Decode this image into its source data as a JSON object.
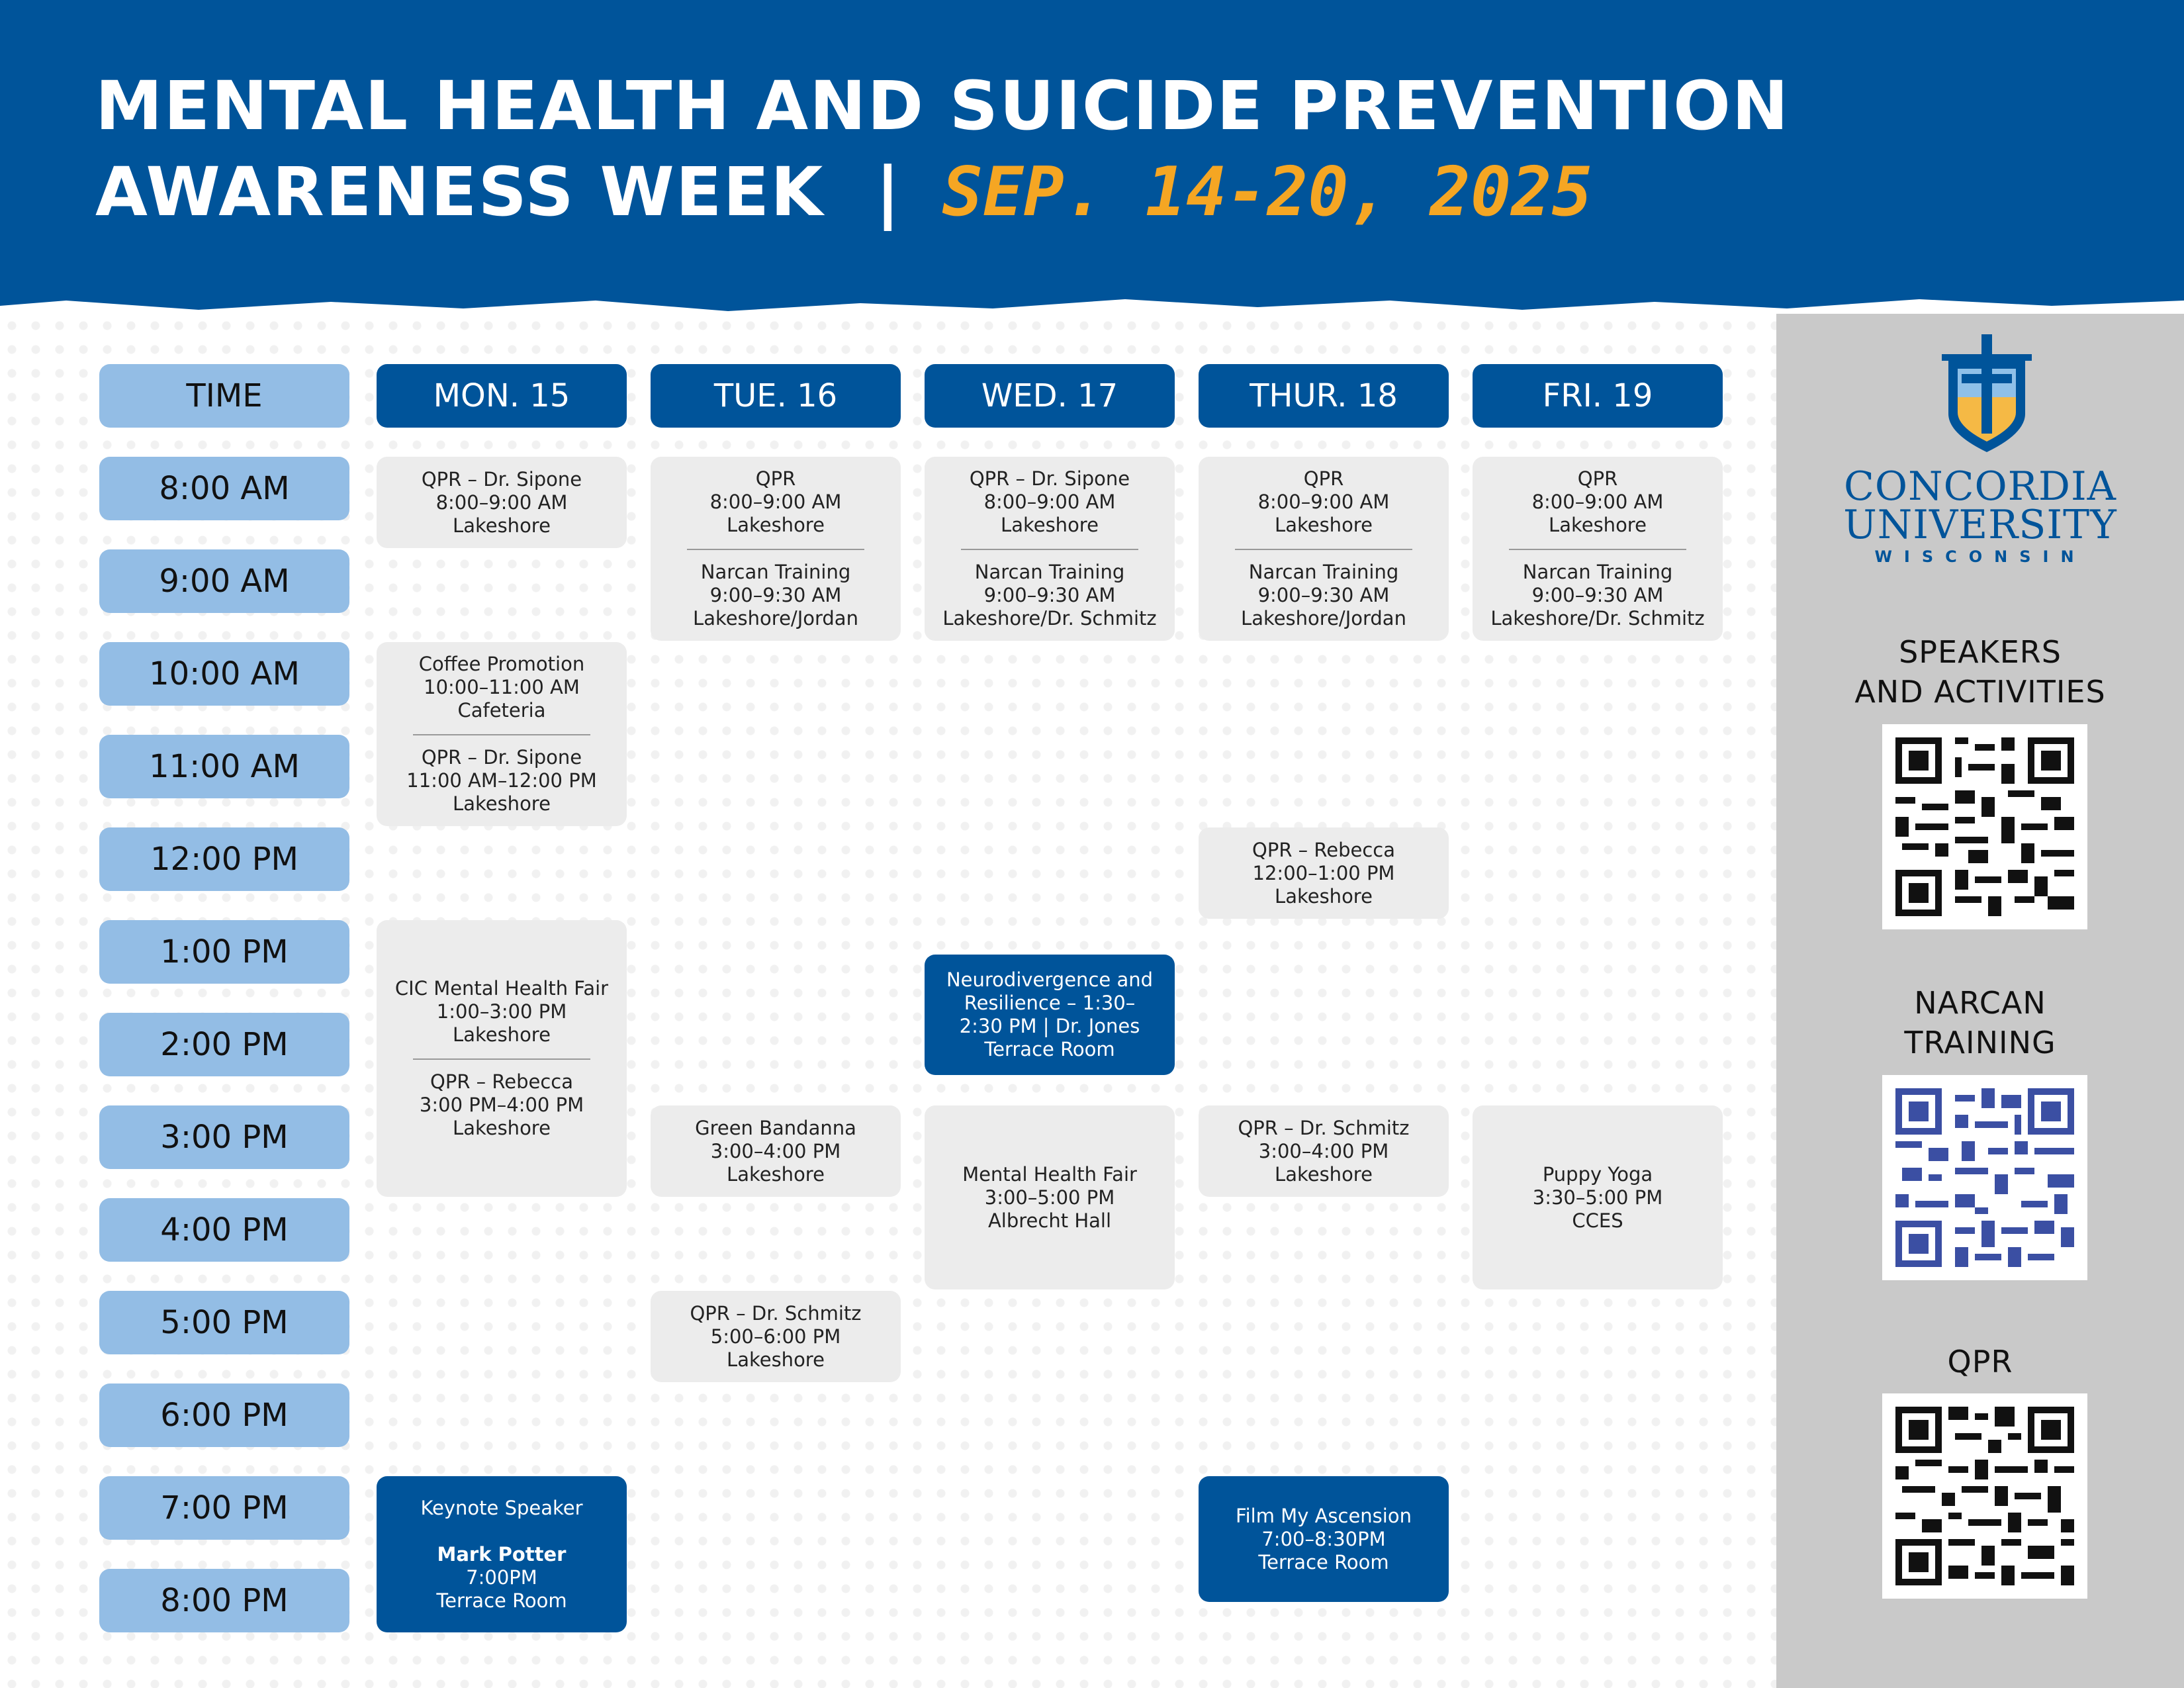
{
  "header": {
    "title_line1": "MENTAL HEALTH AND SUICIDE PREVENTION",
    "title_line2": "AWARENESS WEEK",
    "separator": "|",
    "dates": "SEP. 14-20, 2025"
  },
  "grid": {
    "time_header": "TIME",
    "days": [
      "MON. 15",
      "TUE. 16",
      "WED. 17",
      "THUR. 18",
      "FRI. 19"
    ],
    "times": [
      "8:00 AM",
      "9:00 AM",
      "10:00 AM",
      "11:00 AM",
      "12:00 PM",
      "1:00 PM",
      "2:00 PM",
      "3:00 PM",
      "4:00 PM",
      "5:00 PM",
      "6:00 PM",
      "7:00 PM",
      "8:00 PM"
    ]
  },
  "events": {
    "mon_qpr": [
      "QPR – Dr. Sipone",
      "8:00–9:00 AM",
      "Lakeshore"
    ],
    "mon_coffee": [
      "Coffee Promotion",
      "10:00–11:00 AM",
      "Cafeteria"
    ],
    "mon_qpr2": [
      "QPR – Dr. Sipone",
      "11:00 AM–12:00 PM",
      "Lakeshore"
    ],
    "mon_fair": [
      "CIC Mental Health Fair",
      "1:00–3:00 PM",
      "Lakeshore"
    ],
    "mon_qpr3": [
      "QPR – Rebecca",
      "3:00 PM–4:00 PM",
      "Lakeshore"
    ],
    "mon_keynote": [
      "Keynote Speaker",
      "Mark Potter",
      "7:00PM",
      "Terrace Room"
    ],
    "tue_qpr": [
      "QPR",
      "8:00–9:00 AM",
      "Lakeshore"
    ],
    "tue_narcan": [
      "Narcan Training",
      "9:00–9:30 AM",
      "Lakeshore/Jordan"
    ],
    "tue_bandanna": [
      "Green Bandanna",
      "3:00–4:00 PM",
      "Lakeshore"
    ],
    "tue_qpr2": [
      "QPR – Dr. Schmitz",
      "5:00–6:00 PM",
      "Lakeshore"
    ],
    "wed_qpr": [
      "QPR – Dr. Sipone",
      "8:00–9:00 AM",
      "Lakeshore"
    ],
    "wed_narcan": [
      "Narcan Training",
      "9:00–9:30 AM",
      "Lakeshore/Dr. Schmitz"
    ],
    "wed_neuro": [
      "Neurodivergence and",
      "Resilience – 1:30–",
      "2:30 PM | Dr. Jones",
      "Terrace Room"
    ],
    "wed_fair": [
      "Mental Health Fair",
      "3:00–5:00 PM",
      "Albrecht Hall"
    ],
    "thu_qpr": [
      "QPR",
      "8:00–9:00 AM",
      "Lakeshore"
    ],
    "thu_narcan": [
      "Narcan Training",
      "9:00–9:30 AM",
      "Lakeshore/Jordan"
    ],
    "thu_qpr2": [
      "QPR – Rebecca",
      "12:00–1:00 PM",
      "Lakeshore"
    ],
    "thu_qpr3": [
      "QPR – Dr. Schmitz",
      "3:00–4:00 PM",
      "Lakeshore"
    ],
    "thu_film": [
      "Film My Ascension",
      "7:00–8:30PM",
      "Terrace Room"
    ],
    "fri_qpr": [
      "QPR",
      "8:00–9:00 AM",
      "Lakeshore"
    ],
    "fri_narcan": [
      "Narcan Training",
      "9:00–9:30 AM",
      "Lakeshore/Dr. Schmitz"
    ],
    "fri_yoga": [
      "Puppy Yoga",
      "3:30–5:00 PM",
      "CCES"
    ]
  },
  "sidebar": {
    "logo_line1": "CONCORDIA",
    "logo_line2": "UNIVERSITY",
    "logo_line3": "WISCONSIN",
    "qr_speakers_line1": "SPEAKERS",
    "qr_speakers_line2": "AND ACTIVITIES",
    "qr_narcan_line1": "NARCAN",
    "qr_narcan_line2": "TRAINING",
    "qr_qpr": "QPR"
  },
  "colors": {
    "brand_blue": "#00549a",
    "time_blue": "#93bde5",
    "accent_orange": "#f5a623",
    "event_gray": "#ececec",
    "sidebar_gray": "#c9c9c9"
  }
}
